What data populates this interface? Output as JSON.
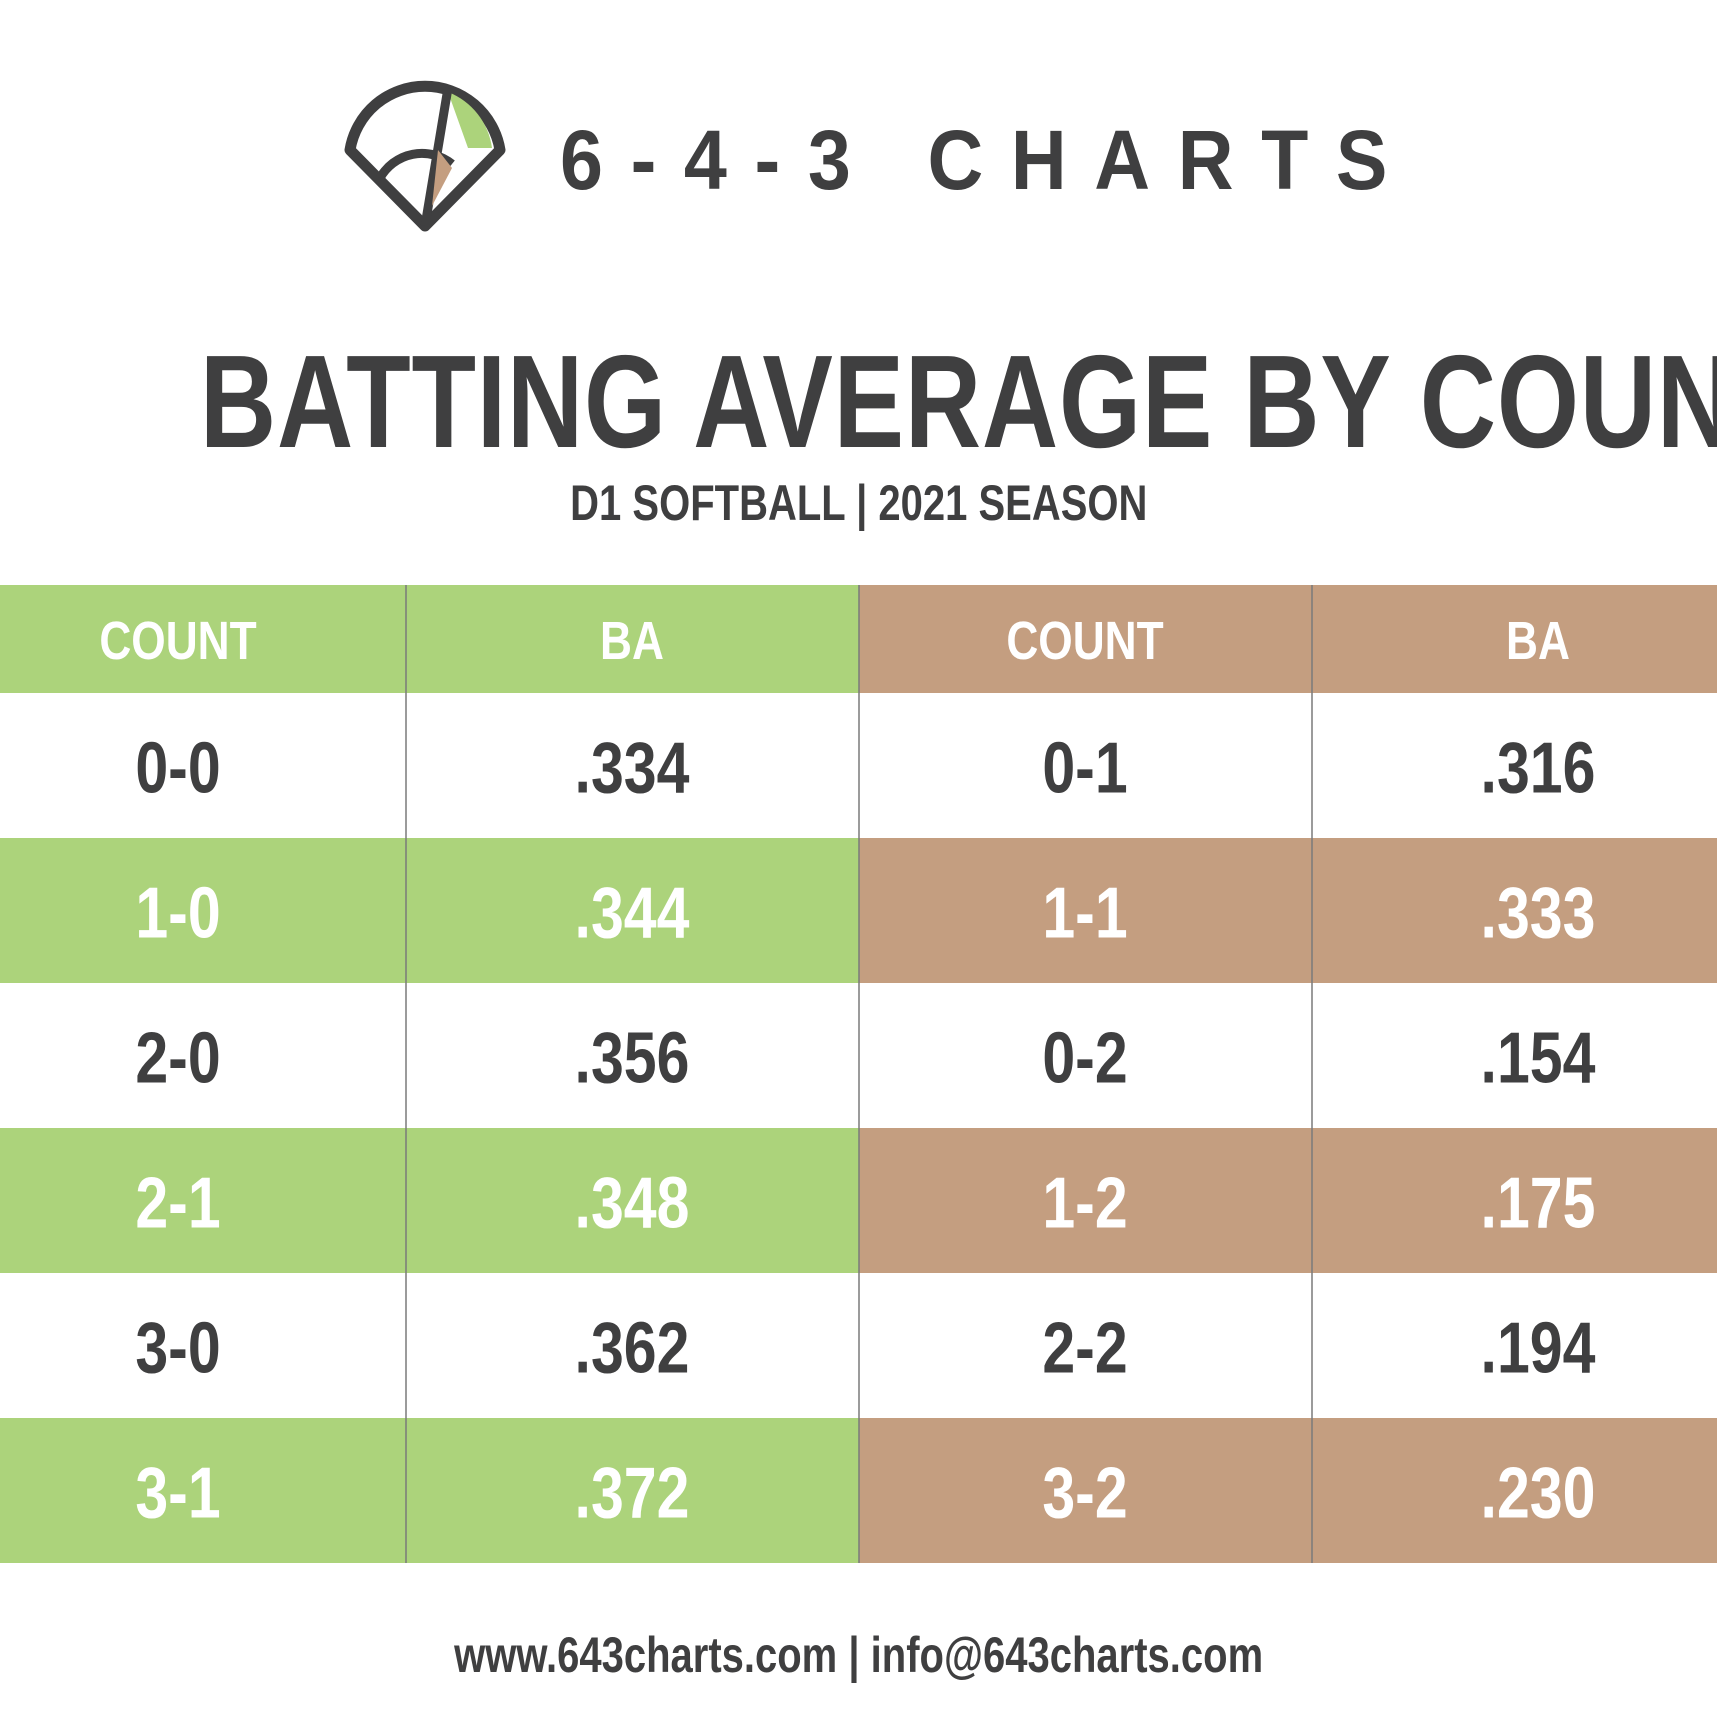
{
  "brand": {
    "name": "6-4-3 CHARTS",
    "logo_icon": "baseball-diamond-icon"
  },
  "chart_data": {
    "type": "table",
    "title": "BATTING AVERAGE BY COUNT",
    "subtitle": "D1 SOFTBALL | 2021 SEASON",
    "columns": [
      "COUNT",
      "BA",
      "COUNT",
      "BA"
    ],
    "left_group": {
      "counts": [
        "0-0",
        "1-0",
        "2-0",
        "2-1",
        "3-0",
        "3-1"
      ],
      "ba": [
        ".334",
        ".344",
        ".356",
        ".348",
        ".362",
        ".372"
      ]
    },
    "right_group": {
      "counts": [
        "0-1",
        "1-1",
        "0-2",
        "1-2",
        "2-2",
        "3-2"
      ],
      "ba": [
        ".316",
        ".333",
        ".154",
        ".175",
        ".194",
        ".230"
      ]
    }
  },
  "colors": {
    "green": "#acd37b",
    "tan": "#c49e80",
    "dark": "#3f3f40",
    "white": "#ffffff",
    "divider": "#7a7a7a"
  },
  "footer": "www.643charts.com | info@643charts.com"
}
